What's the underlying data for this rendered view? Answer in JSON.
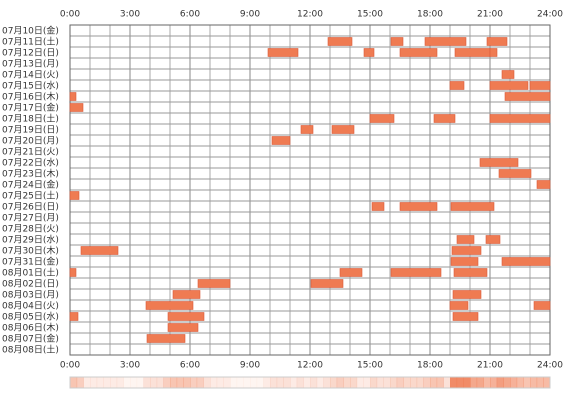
{
  "chart_data": {
    "type": "timeline",
    "color": "#ef7b52",
    "stroke": "#d95a3a",
    "xlim": [
      0,
      24
    ],
    "xticks": [
      {
        "value": 0,
        "label": "0:00"
      },
      {
        "value": 3,
        "label": "3:00"
      },
      {
        "value": 6,
        "label": "6:00"
      },
      {
        "value": 9,
        "label": "9:00"
      },
      {
        "value": 12,
        "label": "12:00"
      },
      {
        "value": 15,
        "label": "15:00"
      },
      {
        "value": 18,
        "label": "18:00"
      },
      {
        "value": 21,
        "label": "21:00"
      },
      {
        "value": 24,
        "label": "24:00"
      }
    ],
    "rows": [
      {
        "label": "07月10日(金)",
        "spans": []
      },
      {
        "label": "07月11日(土)",
        "spans": [
          [
            12.9,
            14.1
          ],
          [
            16.05,
            16.65
          ],
          [
            17.75,
            19.8
          ],
          [
            20.85,
            21.85
          ]
        ]
      },
      {
        "label": "07月12日(日)",
        "spans": [
          [
            9.9,
            11.4
          ],
          [
            14.7,
            15.2
          ],
          [
            16.5,
            18.35
          ],
          [
            19.25,
            21.0
          ],
          [
            21.0,
            21.35
          ]
        ]
      },
      {
        "label": "07月13日(月)",
        "spans": []
      },
      {
        "label": "07月14日(火)",
        "spans": [
          [
            21.6,
            22.2
          ]
        ]
      },
      {
        "label": "07月15日(水)",
        "spans": [
          [
            19.0,
            19.7
          ],
          [
            21.0,
            22.9
          ],
          [
            23.0,
            24
          ]
        ]
      },
      {
        "label": "07月16日(木)",
        "spans": [
          [
            0,
            0.3
          ],
          [
            21.75,
            24
          ]
        ]
      },
      {
        "label": "07月17日(金)",
        "spans": [
          [
            0,
            0.65
          ]
        ]
      },
      {
        "label": "07月18日(土)",
        "spans": [
          [
            15.0,
            16.2
          ],
          [
            18.2,
            19.25
          ],
          [
            21.0,
            24
          ]
        ]
      },
      {
        "label": "07月19日(日)",
        "spans": [
          [
            11.55,
            12.15
          ],
          [
            13.1,
            14.2
          ]
        ]
      },
      {
        "label": "07月20日(月)",
        "spans": [
          [
            10.1,
            11.0
          ]
        ]
      },
      {
        "label": "07月21日(火)",
        "spans": []
      },
      {
        "label": "07月22日(水)",
        "spans": [
          [
            20.5,
            22.4
          ]
        ]
      },
      {
        "label": "07月23日(木)",
        "spans": [
          [
            21.45,
            23.05
          ]
        ]
      },
      {
        "label": "07月24日(金)",
        "spans": [
          [
            23.35,
            24
          ]
        ]
      },
      {
        "label": "07月25日(土)",
        "spans": [
          [
            0,
            0.45
          ]
        ]
      },
      {
        "label": "07月26日(日)",
        "spans": [
          [
            15.1,
            15.7
          ],
          [
            16.5,
            18.35
          ],
          [
            19.05,
            21.2
          ]
        ]
      },
      {
        "label": "07月27日(月)",
        "spans": []
      },
      {
        "label": "07月28日(火)",
        "spans": []
      },
      {
        "label": "07月29日(水)",
        "spans": [
          [
            19.35,
            20.2
          ],
          [
            20.8,
            21.5
          ]
        ]
      },
      {
        "label": "07月30日(木)",
        "spans": [
          [
            0.55,
            2.4
          ],
          [
            19.1,
            20.55
          ]
        ]
      },
      {
        "label": "07月31日(金)",
        "spans": [
          [
            19.05,
            20.4
          ],
          [
            21.6,
            24
          ]
        ]
      },
      {
        "label": "08月01日(土)",
        "spans": [
          [
            0,
            0.3
          ],
          [
            13.5,
            14.6
          ],
          [
            16.05,
            18.55
          ],
          [
            19.2,
            20.85
          ]
        ]
      },
      {
        "label": "08月02日(日)",
        "spans": [
          [
            6.4,
            8.0
          ],
          [
            12.05,
            13.65
          ]
        ]
      },
      {
        "label": "08月03日(月)",
        "spans": [
          [
            5.15,
            6.5
          ],
          [
            19.15,
            20.55
          ]
        ]
      },
      {
        "label": "08月04日(火)",
        "spans": [
          [
            3.8,
            6.15
          ],
          [
            19.0,
            19.9
          ],
          [
            23.2,
            24
          ]
        ]
      },
      {
        "label": "08月05日(水)",
        "spans": [
          [
            0,
            0.4
          ],
          [
            4.9,
            6.7
          ],
          [
            19.15,
            20.4
          ]
        ]
      },
      {
        "label": "08月06日(木)",
        "spans": [
          [
            4.9,
            6.4
          ]
        ]
      },
      {
        "label": "08月07日(金)",
        "spans": [
          [
            3.85,
            5.75
          ]
        ]
      },
      {
        "label": "08月08日(土)",
        "spans": []
      }
    ]
  }
}
